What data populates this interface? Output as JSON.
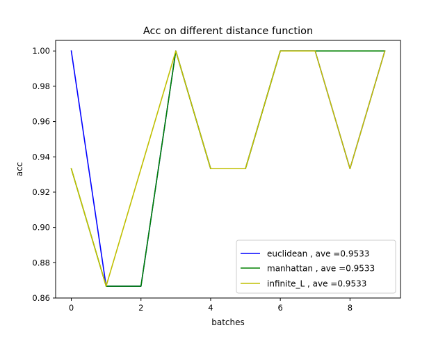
{
  "chart_data": {
    "type": "line",
    "title": "Acc on different distance function",
    "xlabel": "batches",
    "ylabel": "acc",
    "xlim": [
      -0.45,
      9.45
    ],
    "ylim": [
      0.86,
      1.006
    ],
    "xticks": [
      0,
      2,
      4,
      6,
      8
    ],
    "xtick_labels": [
      "0",
      "2",
      "4",
      "6",
      "8"
    ],
    "yticks": [
      0.86,
      0.88,
      0.9,
      0.92,
      0.94,
      0.96,
      0.98,
      1.0
    ],
    "ytick_labels": [
      "0.86",
      "0.88",
      "0.90",
      "0.92",
      "0.94",
      "0.96",
      "0.98",
      "1.00"
    ],
    "grid": false,
    "legend_position": "lower-right",
    "x": [
      0,
      1,
      2,
      3,
      4,
      5,
      6,
      7,
      8,
      9
    ],
    "series": [
      {
        "name": "euclidean , ave =0.9533",
        "color": "#0000ff",
        "values": [
          1.0,
          0.8667,
          0.8667,
          1.0,
          0.9333,
          0.9333,
          1.0,
          1.0,
          0.9333,
          1.0
        ]
      },
      {
        "name": "manhattan , ave =0.9533",
        "color": "#008000",
        "values": [
          0.9333,
          0.8667,
          0.8667,
          1.0,
          0.9333,
          0.9333,
          1.0,
          1.0,
          1.0,
          1.0
        ]
      },
      {
        "name": "infinite_L , ave =0.9533",
        "color": "#bfbf00",
        "values": [
          0.9333,
          0.8667,
          0.9333,
          1.0,
          0.9333,
          0.9333,
          1.0,
          1.0,
          0.9333,
          1.0
        ]
      }
    ]
  }
}
